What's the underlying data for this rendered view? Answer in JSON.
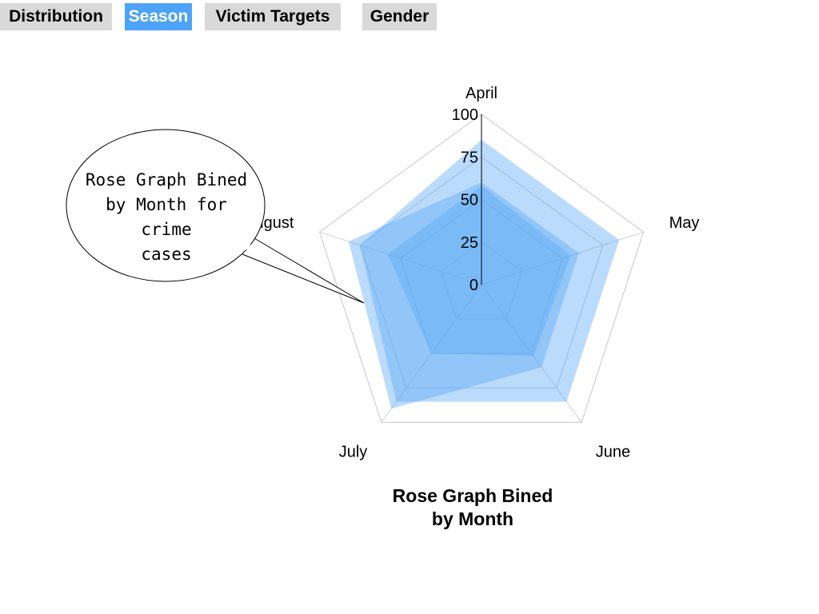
{
  "tabs": [
    {
      "label": "Distribution",
      "active": false
    },
    {
      "label": "Season",
      "active": true
    },
    {
      "label": "Victim Targets",
      "active": false
    },
    {
      "label": "Gender",
      "active": false
    }
  ],
  "colors": {
    "tab_inactive": "#d9d9d9",
    "tab_active": "#4da3f7",
    "series_fill": "#5aa9f5"
  },
  "callout": {
    "lines": [
      "Rose Graph Bined",
      "by Month for crime",
      "cases"
    ]
  },
  "chart_data": {
    "type": "radar",
    "title_lines": [
      "Rose Graph Bined",
      "by Month"
    ],
    "categories": [
      "April",
      "May",
      "June",
      "July",
      "August"
    ],
    "radial_range": [
      0,
      100
    ],
    "radial_ticks": [
      "0",
      "25",
      "50",
      "75",
      "100"
    ],
    "grid": true,
    "series": [
      {
        "values": [
          85,
          85,
          85,
          85,
          75
        ]
      },
      {
        "values": [
          58,
          55,
          52,
          50,
          58
        ]
      },
      {
        "values": [
          60,
          60,
          60,
          90,
          82
        ]
      }
    ]
  }
}
